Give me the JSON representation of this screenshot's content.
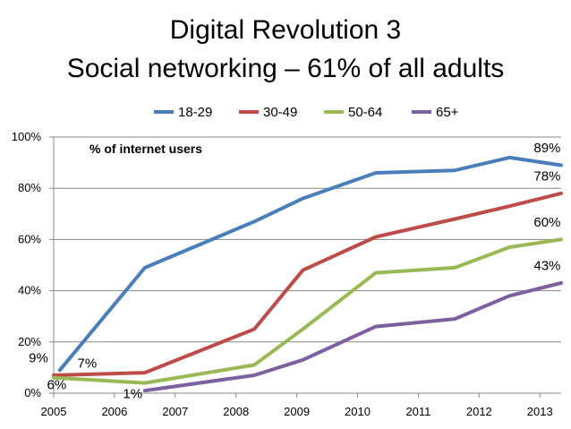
{
  "slide": {
    "title_line1": "Digital Revolution 3",
    "title_line2": "Social networking – 61% of all adults"
  },
  "chart_data": {
    "type": "line",
    "title": "Social networking – 61% of all adults",
    "annotation": "% of internet users",
    "x_ticks": [
      "2005",
      "2006",
      "2007",
      "2008",
      "2009",
      "2010",
      "2011",
      "2012",
      "2013"
    ],
    "xlim": [
      2005,
      2013.35
    ],
    "y_ticks": [
      "0%",
      "20%",
      "40%",
      "60%",
      "80%",
      "100%"
    ],
    "ylim": [
      0,
      100
    ],
    "grid": "horizontal",
    "legend_position": "top",
    "series": [
      {
        "name": "18-29",
        "color": "#4a7ebb",
        "x": [
          2005.1,
          2006.5,
          2008.3,
          2009.1,
          2010.3,
          2011.6,
          2012.5,
          2013.35
        ],
        "values": [
          9,
          49,
          67,
          76,
          86,
          87,
          92,
          89
        ],
        "labels": [
          {
            "text": "9%",
            "x": 2004.75,
            "y": 12
          },
          {
            "text": "89%",
            "x": 2013.12,
            "y": 94
          }
        ]
      },
      {
        "name": "30-49",
        "color": "#be4b48",
        "x": [
          2005.0,
          2006.5,
          2008.3,
          2009.1,
          2010.3,
          2011.6,
          2012.5,
          2013.35
        ],
        "values": [
          7,
          8,
          25,
          48,
          61,
          68,
          73,
          78
        ],
        "labels": [
          {
            "text": "7%",
            "x": 2005.55,
            "y": 10
          },
          {
            "text": "78%",
            "x": 2013.12,
            "y": 83
          }
        ]
      },
      {
        "name": "50-64",
        "color": "#98b954",
        "x": [
          2005.0,
          2006.5,
          2008.3,
          2009.1,
          2010.3,
          2011.6,
          2012.5,
          2013.35
        ],
        "values": [
          6,
          4,
          11,
          25,
          47,
          49,
          57,
          60
        ],
        "labels": [
          {
            "text": "6%",
            "x": 2005.05,
            "y": 1.5
          },
          {
            "text": "60%",
            "x": 2013.12,
            "y": 65
          }
        ]
      },
      {
        "name": "65+",
        "color": "#7d60a0",
        "x": [
          2006.5,
          2008.3,
          2009.1,
          2010.3,
          2011.6,
          2012.5,
          2013.35
        ],
        "values": [
          1,
          7,
          13,
          26,
          29,
          38,
          43
        ],
        "labels": [
          {
            "text": "1%",
            "x": 2006.3,
            "y": -2
          },
          {
            "text": "43%",
            "x": 2013.12,
            "y": 48
          }
        ]
      }
    ]
  }
}
